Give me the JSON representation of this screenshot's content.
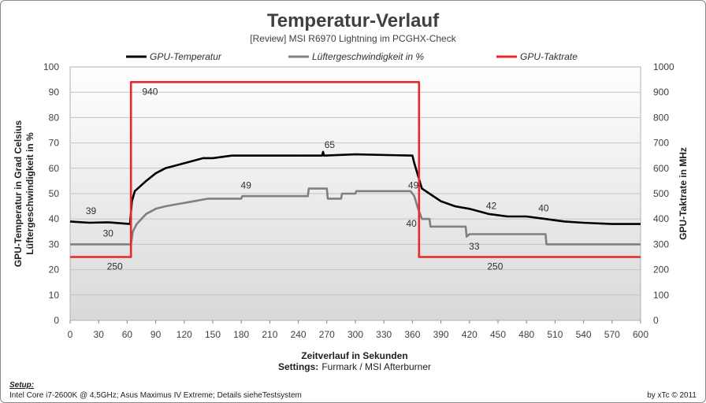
{
  "chart_data": {
    "type": "line",
    "title": "Temperatur-Verlauf",
    "subtitle": "[Review]  MSI R6970  Lightning  im PCGHX-Check",
    "xlabel": "Zeitverlauf in Sekunden",
    "ylabel_left": [
      "GPU-Temperatur  in Grad Celsius",
      "Lüftergeschwindigkeit  in %"
    ],
    "ylabel_right": "GPU-Taktrate in MHz",
    "settings_label": "Settings:",
    "settings_value": "Furmark / MSI Afterburner",
    "xlim": [
      0,
      600
    ],
    "ylim_left": [
      0,
      100
    ],
    "ylim_right": [
      0,
      1000
    ],
    "x_ticks": [
      "0",
      "30",
      "60",
      "90",
      "120",
      "150",
      "180",
      "210",
      "240",
      "270",
      "300",
      "330",
      "360",
      "390",
      "420",
      "450",
      "480",
      "510",
      "540",
      "570",
      "600"
    ],
    "y_left_ticks": [
      "0",
      "10",
      "20",
      "30",
      "40",
      "50",
      "60",
      "70",
      "80",
      "90",
      "100"
    ],
    "y_right_ticks": [
      "0",
      "100",
      "200",
      "300",
      "400",
      "500",
      "600",
      "700",
      "800",
      "900",
      "1000"
    ],
    "grid": true,
    "legend_position": "top",
    "series": [
      {
        "name": "GPU-Temperatur",
        "axis": "left",
        "color": "#000000",
        "points": [
          [
            0,
            39
          ],
          [
            20,
            38.5
          ],
          [
            40,
            38.7
          ],
          [
            63,
            38
          ],
          [
            65,
            47
          ],
          [
            68,
            51
          ],
          [
            74,
            53
          ],
          [
            80,
            55
          ],
          [
            90,
            58
          ],
          [
            100,
            60
          ],
          [
            110,
            61
          ],
          [
            120,
            62
          ],
          [
            130,
            63
          ],
          [
            140,
            64
          ],
          [
            150,
            64
          ],
          [
            160,
            64.5
          ],
          [
            170,
            65
          ],
          [
            200,
            65
          ],
          [
            240,
            65
          ],
          [
            265,
            65
          ],
          [
            266,
            66.5
          ],
          [
            267,
            65
          ],
          [
            300,
            65.5
          ],
          [
            360,
            65
          ],
          [
            362,
            62
          ],
          [
            366,
            57
          ],
          [
            370,
            52
          ],
          [
            378,
            50
          ],
          [
            390,
            47
          ],
          [
            405,
            45
          ],
          [
            420,
            44
          ],
          [
            430,
            43
          ],
          [
            440,
            42
          ],
          [
            460,
            41
          ],
          [
            480,
            41
          ],
          [
            500,
            40
          ],
          [
            520,
            39
          ],
          [
            540,
            38.5
          ],
          [
            570,
            38
          ],
          [
            600,
            38
          ]
        ]
      },
      {
        "name": "Lüftergeschwindigkeit in %",
        "axis": "left",
        "color": "#808080",
        "points": [
          [
            0,
            30
          ],
          [
            64,
            30
          ],
          [
            66,
            35
          ],
          [
            70,
            38
          ],
          [
            75,
            40
          ],
          [
            80,
            42
          ],
          [
            90,
            44
          ],
          [
            100,
            45
          ],
          [
            115,
            46
          ],
          [
            130,
            47
          ],
          [
            145,
            48
          ],
          [
            180,
            48
          ],
          [
            181,
            49
          ],
          [
            250,
            49
          ],
          [
            251,
            52
          ],
          [
            270,
            52
          ],
          [
            271,
            48
          ],
          [
            285,
            48
          ],
          [
            286,
            50
          ],
          [
            300,
            50
          ],
          [
            301,
            51
          ],
          [
            358,
            51
          ],
          [
            362,
            49
          ],
          [
            366,
            44
          ],
          [
            370,
            40
          ],
          [
            378,
            40
          ],
          [
            379,
            37
          ],
          [
            416,
            37
          ],
          [
            417,
            33
          ],
          [
            420,
            34
          ],
          [
            480,
            34
          ],
          [
            500,
            34
          ],
          [
            501,
            30
          ],
          [
            600,
            30
          ]
        ]
      },
      {
        "name": "GPU-Taktrate",
        "axis": "right",
        "color": "#e8282a",
        "points": [
          [
            0,
            250
          ],
          [
            64,
            250
          ],
          [
            64,
            940
          ],
          [
            367,
            940
          ],
          [
            367,
            250
          ],
          [
            600,
            250
          ]
        ]
      }
    ],
    "annotations": [
      {
        "text": "39",
        "x": 22,
        "y": 42,
        "axis": "left"
      },
      {
        "text": "30",
        "x": 40,
        "y": 33,
        "axis": "left"
      },
      {
        "text": "250",
        "x": 47,
        "y": 200,
        "axis": "right"
      },
      {
        "text": "940",
        "x": 84,
        "y": 890,
        "axis": "right"
      },
      {
        "text": "49",
        "x": 185,
        "y": 52,
        "axis": "left"
      },
      {
        "text": "65",
        "x": 273,
        "y": 68,
        "axis": "left"
      },
      {
        "text": "49",
        "x": 361,
        "y": 52,
        "axis": "left"
      },
      {
        "text": "40",
        "x": 359,
        "y": 37,
        "axis": "left"
      },
      {
        "text": "33",
        "x": 425,
        "y": 28,
        "axis": "left"
      },
      {
        "text": "42",
        "x": 443,
        "y": 44,
        "axis": "left"
      },
      {
        "text": "40",
        "x": 498,
        "y": 43,
        "axis": "left"
      },
      {
        "text": "250",
        "x": 447,
        "y": 200,
        "axis": "right"
      }
    ]
  },
  "footer": {
    "setup_label": "Setup:",
    "setup_text": "Intel Core i7-2600K @ 4,5GHz; Asus Maximus IV Extreme; Details sieheTestsystem",
    "credit": "by xTc © 2011"
  }
}
